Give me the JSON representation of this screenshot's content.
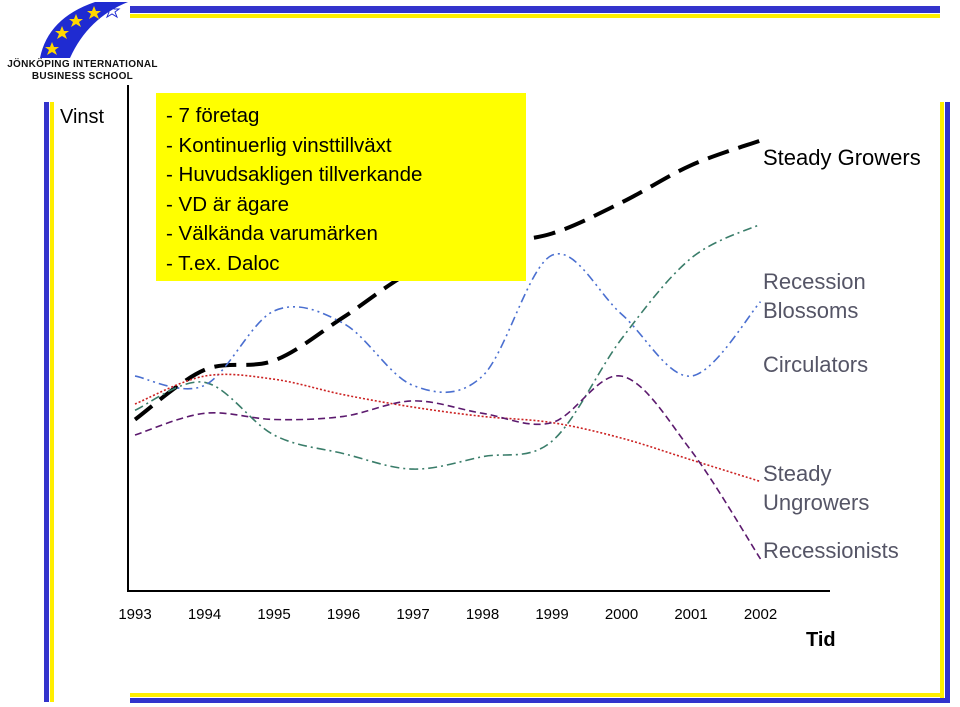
{
  "logo": {
    "line1": "JÖNKÖPING INTERNATIONAL",
    "line2": "BUSINESS SCHOOL",
    "blue": "#1f2bd1",
    "star": "#ffd700"
  },
  "frame": {
    "blue": "#3333cc",
    "yellow": "#ffee00"
  },
  "info_box": {
    "background": "#ffff00",
    "lines": [
      "- 7 företag",
      "- Kontinuerlig vinsttillväxt",
      "- Huvudsakligen tillverkande",
      "- VD är ägare",
      "- Välkända varumärken",
      "- T.ex. Daloc"
    ]
  },
  "chart_data": {
    "type": "line",
    "ylabel": "Vinst",
    "xlabel": "Tid",
    "categories": [
      "1993",
      "1994",
      "1995",
      "1996",
      "1997",
      "1998",
      "1999",
      "2000",
      "2001",
      "2002"
    ],
    "y_ticks": "none",
    "grid": false,
    "series": [
      {
        "name": "Steady Growers",
        "style": "long-dash",
        "color": "#000000",
        "values": [
          2.0,
          3.6,
          3.9,
          5.3,
          6.8,
          7.6,
          8.0,
          9.0,
          10.2,
          11.0
        ]
      },
      {
        "name": "Recession Blossoms",
        "style": "dash-dot",
        "color": "#3a7d6a",
        "values": [
          2.3,
          3.2,
          1.5,
          0.9,
          0.4,
          0.8,
          1.3,
          4.6,
          7.2,
          8.3
        ]
      },
      {
        "name": "Circulators",
        "style": "dash-dot-dot",
        "color": "#4a6fd0",
        "values": [
          3.4,
          3.1,
          5.5,
          5.1,
          3.1,
          3.4,
          7.3,
          5.4,
          3.4,
          5.8
        ]
      },
      {
        "name": "Steady Ungrowers",
        "style": "dotted",
        "color": "#cc2222",
        "values": [
          2.5,
          3.4,
          3.3,
          2.8,
          2.4,
          2.1,
          1.9,
          1.4,
          0.7,
          0.0
        ]
      },
      {
        "name": "Recessionists",
        "style": "short-dash",
        "color": "#5c1a6e",
        "values": [
          1.5,
          2.2,
          2.0,
          2.1,
          2.6,
          2.2,
          1.9,
          3.4,
          1.0,
          -2.5
        ]
      }
    ],
    "series_labels": {
      "steady_growers": "Steady Growers",
      "recession_blossoms": [
        "Recession",
        "Blossoms"
      ],
      "circulators": "Circulators",
      "steady_ungrowers": [
        "Steady",
        "Ungrowers"
      ],
      "recessionists": "Recessionists"
    },
    "label_colors": {
      "steady_growers": "#000000",
      "others": "#555566"
    }
  }
}
